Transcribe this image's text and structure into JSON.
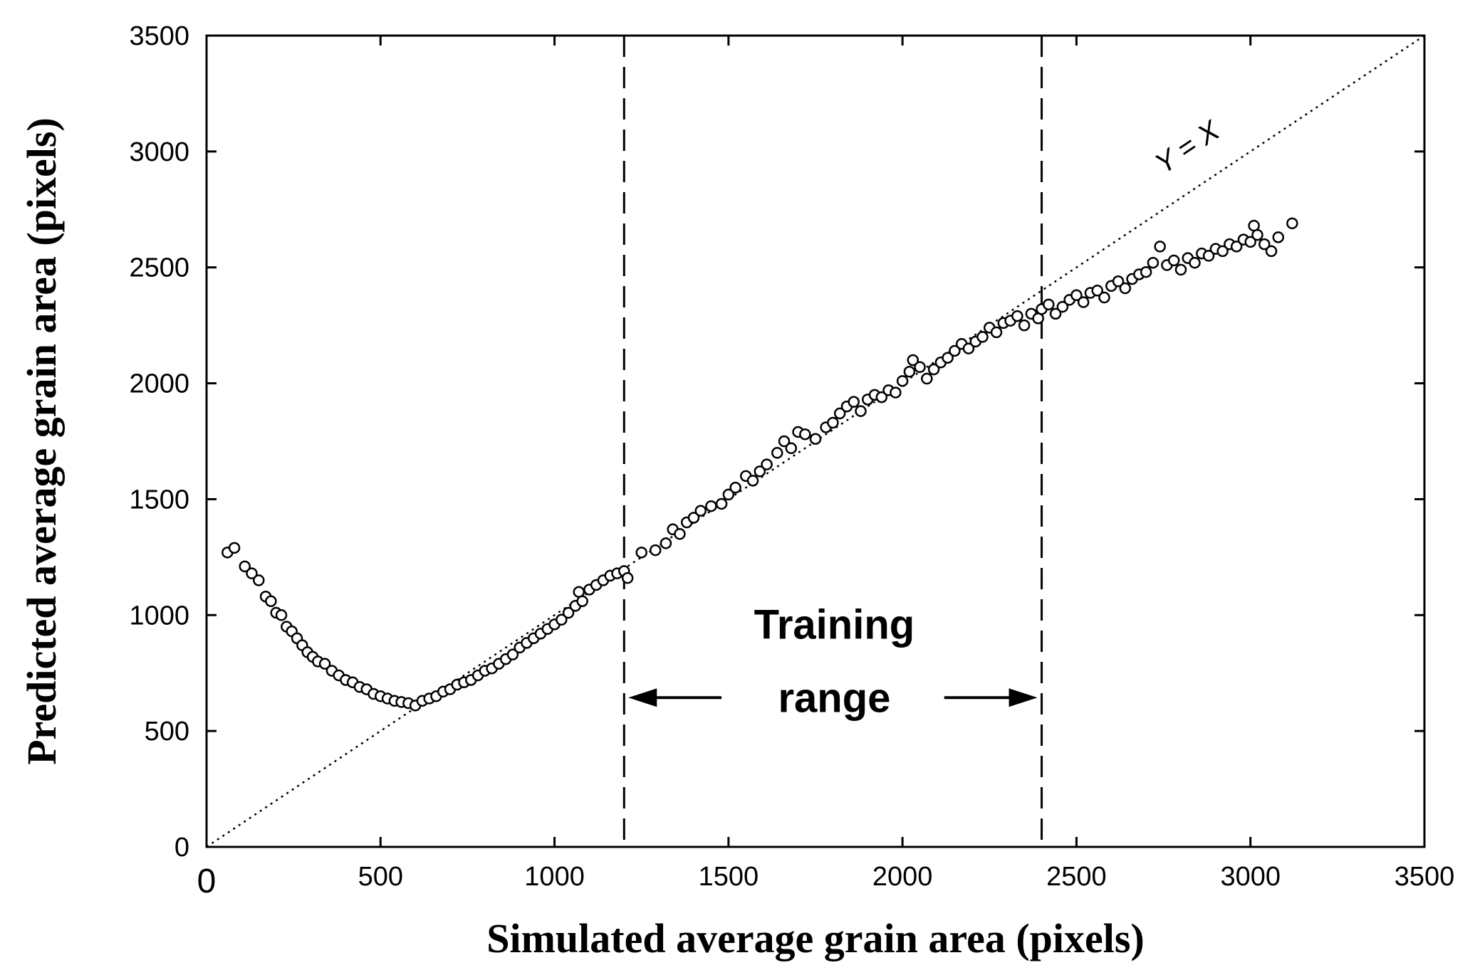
{
  "chart_data": {
    "type": "scatter",
    "title": "",
    "xlabel": "Simulated average grain area (pixels)",
    "ylabel": "Predicted average grain area (pixels)",
    "xlim": [
      0,
      3500
    ],
    "ylim": [
      0,
      3500
    ],
    "xticks": [
      0,
      500,
      1000,
      1500,
      2000,
      2500,
      3000,
      3500
    ],
    "yticks": [
      0,
      500,
      1000,
      1500,
      2000,
      2500,
      3000,
      3500
    ],
    "xtick_labels": [
      "0",
      "500",
      "1000",
      "1500",
      "2000",
      "2500",
      "3000",
      "3500"
    ],
    "ytick_labels": [
      "0",
      "500",
      "1000",
      "1500",
      "2000",
      "2500",
      "3000",
      "3500"
    ],
    "grid": false,
    "reference_line": {
      "label": "Y = X",
      "from": [
        0,
        0
      ],
      "to": [
        3500,
        3500
      ],
      "style": "dotted"
    },
    "training_range": {
      "x_min": 1200,
      "x_max": 2400,
      "label_line1": "Training",
      "label_line2": "range"
    },
    "series": [
      {
        "name": "predictions",
        "marker": "open-circle",
        "points": [
          [
            60,
            1270
          ],
          [
            80,
            1290
          ],
          [
            110,
            1210
          ],
          [
            130,
            1180
          ],
          [
            150,
            1150
          ],
          [
            170,
            1080
          ],
          [
            185,
            1060
          ],
          [
            200,
            1010
          ],
          [
            215,
            1000
          ],
          [
            230,
            950
          ],
          [
            245,
            930
          ],
          [
            260,
            900
          ],
          [
            275,
            870
          ],
          [
            290,
            840
          ],
          [
            305,
            820
          ],
          [
            320,
            800
          ],
          [
            340,
            790
          ],
          [
            360,
            760
          ],
          [
            380,
            740
          ],
          [
            400,
            720
          ],
          [
            420,
            710
          ],
          [
            440,
            690
          ],
          [
            460,
            680
          ],
          [
            480,
            660
          ],
          [
            500,
            650
          ],
          [
            520,
            640
          ],
          [
            540,
            630
          ],
          [
            560,
            625
          ],
          [
            580,
            620
          ],
          [
            600,
            610
          ],
          [
            620,
            630
          ],
          [
            640,
            640
          ],
          [
            660,
            650
          ],
          [
            680,
            670
          ],
          [
            700,
            680
          ],
          [
            720,
            700
          ],
          [
            740,
            710
          ],
          [
            760,
            720
          ],
          [
            780,
            740
          ],
          [
            800,
            760
          ],
          [
            820,
            770
          ],
          [
            840,
            790
          ],
          [
            860,
            810
          ],
          [
            880,
            830
          ],
          [
            900,
            860
          ],
          [
            920,
            880
          ],
          [
            940,
            900
          ],
          [
            960,
            920
          ],
          [
            980,
            940
          ],
          [
            1000,
            960
          ],
          [
            1020,
            980
          ],
          [
            1040,
            1010
          ],
          [
            1060,
            1040
          ],
          [
            1070,
            1100
          ],
          [
            1080,
            1060
          ],
          [
            1100,
            1110
          ],
          [
            1120,
            1130
          ],
          [
            1140,
            1150
          ],
          [
            1160,
            1170
          ],
          [
            1180,
            1180
          ],
          [
            1200,
            1190
          ],
          [
            1210,
            1160
          ],
          [
            1250,
            1270
          ],
          [
            1290,
            1280
          ],
          [
            1320,
            1310
          ],
          [
            1340,
            1370
          ],
          [
            1360,
            1350
          ],
          [
            1380,
            1400
          ],
          [
            1400,
            1420
          ],
          [
            1420,
            1450
          ],
          [
            1450,
            1470
          ],
          [
            1480,
            1480
          ],
          [
            1500,
            1520
          ],
          [
            1520,
            1550
          ],
          [
            1550,
            1600
          ],
          [
            1570,
            1580
          ],
          [
            1590,
            1620
          ],
          [
            1610,
            1650
          ],
          [
            1640,
            1700
          ],
          [
            1660,
            1750
          ],
          [
            1680,
            1720
          ],
          [
            1700,
            1790
          ],
          [
            1720,
            1780
          ],
          [
            1750,
            1760
          ],
          [
            1780,
            1810
          ],
          [
            1800,
            1830
          ],
          [
            1820,
            1870
          ],
          [
            1840,
            1900
          ],
          [
            1860,
            1920
          ],
          [
            1880,
            1880
          ],
          [
            1900,
            1930
          ],
          [
            1920,
            1950
          ],
          [
            1940,
            1940
          ],
          [
            1960,
            1970
          ],
          [
            1980,
            1960
          ],
          [
            2000,
            2010
          ],
          [
            2020,
            2050
          ],
          [
            2030,
            2100
          ],
          [
            2050,
            2070
          ],
          [
            2070,
            2020
          ],
          [
            2090,
            2060
          ],
          [
            2110,
            2090
          ],
          [
            2130,
            2110
          ],
          [
            2150,
            2140
          ],
          [
            2170,
            2170
          ],
          [
            2190,
            2150
          ],
          [
            2210,
            2180
          ],
          [
            2230,
            2200
          ],
          [
            2250,
            2240
          ],
          [
            2270,
            2220
          ],
          [
            2290,
            2260
          ],
          [
            2310,
            2270
          ],
          [
            2330,
            2290
          ],
          [
            2350,
            2250
          ],
          [
            2370,
            2300
          ],
          [
            2390,
            2280
          ],
          [
            2400,
            2320
          ],
          [
            2420,
            2340
          ],
          [
            2440,
            2300
          ],
          [
            2460,
            2330
          ],
          [
            2480,
            2360
          ],
          [
            2500,
            2380
          ],
          [
            2520,
            2350
          ],
          [
            2540,
            2390
          ],
          [
            2560,
            2400
          ],
          [
            2580,
            2370
          ],
          [
            2600,
            2420
          ],
          [
            2620,
            2440
          ],
          [
            2640,
            2410
          ],
          [
            2660,
            2450
          ],
          [
            2680,
            2470
          ],
          [
            2700,
            2480
          ],
          [
            2720,
            2520
          ],
          [
            2740,
            2590
          ],
          [
            2760,
            2510
          ],
          [
            2780,
            2530
          ],
          [
            2800,
            2490
          ],
          [
            2820,
            2540
          ],
          [
            2840,
            2520
          ],
          [
            2860,
            2560
          ],
          [
            2880,
            2550
          ],
          [
            2900,
            2580
          ],
          [
            2920,
            2570
          ],
          [
            2940,
            2600
          ],
          [
            2960,
            2590
          ],
          [
            2980,
            2620
          ],
          [
            3000,
            2610
          ],
          [
            3010,
            2680
          ],
          [
            3020,
            2640
          ],
          [
            3040,
            2600
          ],
          [
            3060,
            2570
          ],
          [
            3080,
            2630
          ],
          [
            3120,
            2690
          ]
        ]
      }
    ]
  }
}
